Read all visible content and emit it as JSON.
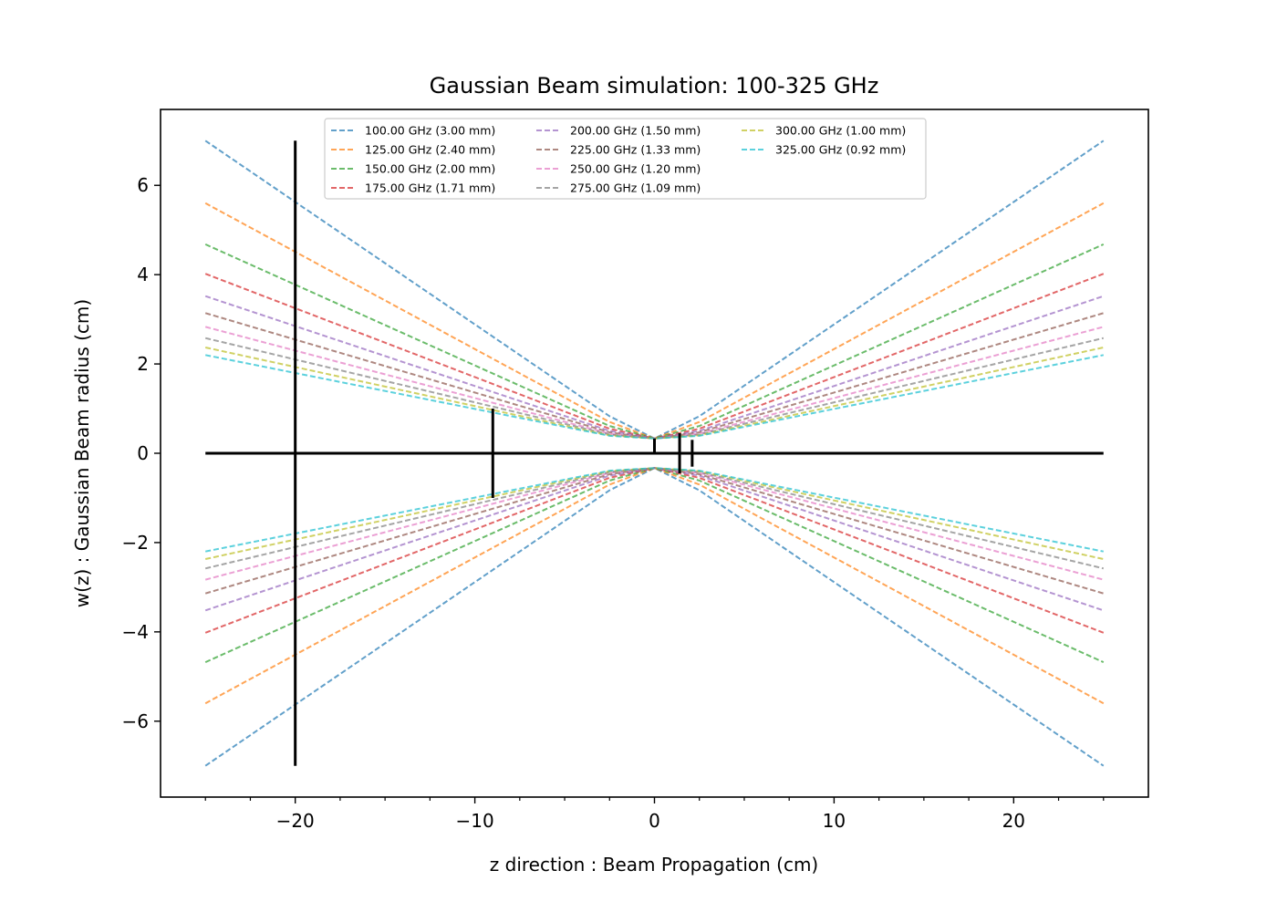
{
  "chart_data": {
    "type": "line",
    "title": "Gaussian Beam simulation: 100-325 GHz",
    "xlabel": "z direction : Beam Propagation (cm)",
    "ylabel": "w(z) : Gaussian Beam radius (cm)",
    "xlim": [
      -27.5,
      27.5
    ],
    "ylim": [
      -7.7,
      7.7
    ],
    "xticks": [
      -20,
      -10,
      0,
      10,
      20
    ],
    "xtick_labels": [
      "−20",
      "−10",
      "0",
      "10",
      "20"
    ],
    "yticks": [
      -6,
      -4,
      -2,
      0,
      2,
      4,
      6
    ],
    "ytick_labels": [
      "−6",
      "−4",
      "−2",
      "0",
      "2",
      "4",
      "6"
    ],
    "grid": false,
    "legend_position": "upper-center",
    "legend_columns": 3,
    "line_style": "dashed",
    "series": [
      {
        "name": "100.00 GHz (3.00 mm)",
        "color": "#1f77b4",
        "x": [
          -25,
          -2.5,
          0,
          2.5,
          25
        ],
        "y": [
          7.0,
          0.83,
          0.33,
          0.83,
          7.0
        ]
      },
      {
        "name": "125.00 GHz (2.40 mm)",
        "color": "#ff7f0e",
        "x": [
          -25,
          -2.5,
          0,
          2.5,
          25
        ],
        "y": [
          5.6,
          0.7,
          0.33,
          0.7,
          5.6
        ]
      },
      {
        "name": "150.00 GHz (2.00 mm)",
        "color": "#2ca02c",
        "x": [
          -25,
          -2.5,
          0,
          2.5,
          25
        ],
        "y": [
          4.68,
          0.61,
          0.33,
          0.61,
          4.68
        ]
      },
      {
        "name": "175.00 GHz (1.71 mm)",
        "color": "#d62728",
        "x": [
          -25,
          -2.5,
          0,
          2.5,
          25
        ],
        "y": [
          4.02,
          0.55,
          0.33,
          0.55,
          4.02
        ]
      },
      {
        "name": "200.00 GHz (1.50 mm)",
        "color": "#9467bd",
        "x": [
          -25,
          -2.5,
          0,
          2.5,
          25
        ],
        "y": [
          3.52,
          0.5,
          0.33,
          0.5,
          3.52
        ]
      },
      {
        "name": "225.00 GHz (1.33 mm)",
        "color": "#8c564b",
        "x": [
          -25,
          -2.5,
          0,
          2.5,
          25
        ],
        "y": [
          3.14,
          0.47,
          0.33,
          0.47,
          3.14
        ]
      },
      {
        "name": "250.00 GHz (1.20 mm)",
        "color": "#e377c2",
        "x": [
          -25,
          -2.5,
          0,
          2.5,
          25
        ],
        "y": [
          2.83,
          0.44,
          0.33,
          0.44,
          2.83
        ]
      },
      {
        "name": "275.00 GHz (1.09 mm)",
        "color": "#7f7f7f",
        "x": [
          -25,
          -2.5,
          0,
          2.5,
          25
        ],
        "y": [
          2.58,
          0.42,
          0.33,
          0.42,
          2.58
        ]
      },
      {
        "name": "300.00 GHz (1.00 mm)",
        "color": "#bcbd22",
        "x": [
          -25,
          -2.5,
          0,
          2.5,
          25
        ],
        "y": [
          2.37,
          0.4,
          0.33,
          0.4,
          2.37
        ]
      },
      {
        "name": "325.00 GHz (0.92 mm)",
        "color": "#17becf",
        "x": [
          -25,
          -2.5,
          0,
          2.5,
          25
        ],
        "y": [
          2.2,
          0.39,
          0.33,
          0.39,
          2.2
        ]
      }
    ],
    "reference_lines": [
      {
        "x": [
          -25,
          25
        ],
        "y": [
          0,
          0
        ]
      },
      {
        "x": [
          -20,
          -20
        ],
        "y": [
          -7,
          7
        ]
      },
      {
        "x": [
          -9,
          -9
        ],
        "y": [
          -1,
          1
        ]
      },
      {
        "x": [
          0,
          0
        ],
        "y": [
          0,
          0.33
        ]
      },
      {
        "x": [
          1.4,
          1.4
        ],
        "y": [
          -0.45,
          0.45
        ]
      },
      {
        "x": [
          2.1,
          2.1
        ],
        "y": [
          -0.3,
          0.3
        ]
      }
    ]
  }
}
